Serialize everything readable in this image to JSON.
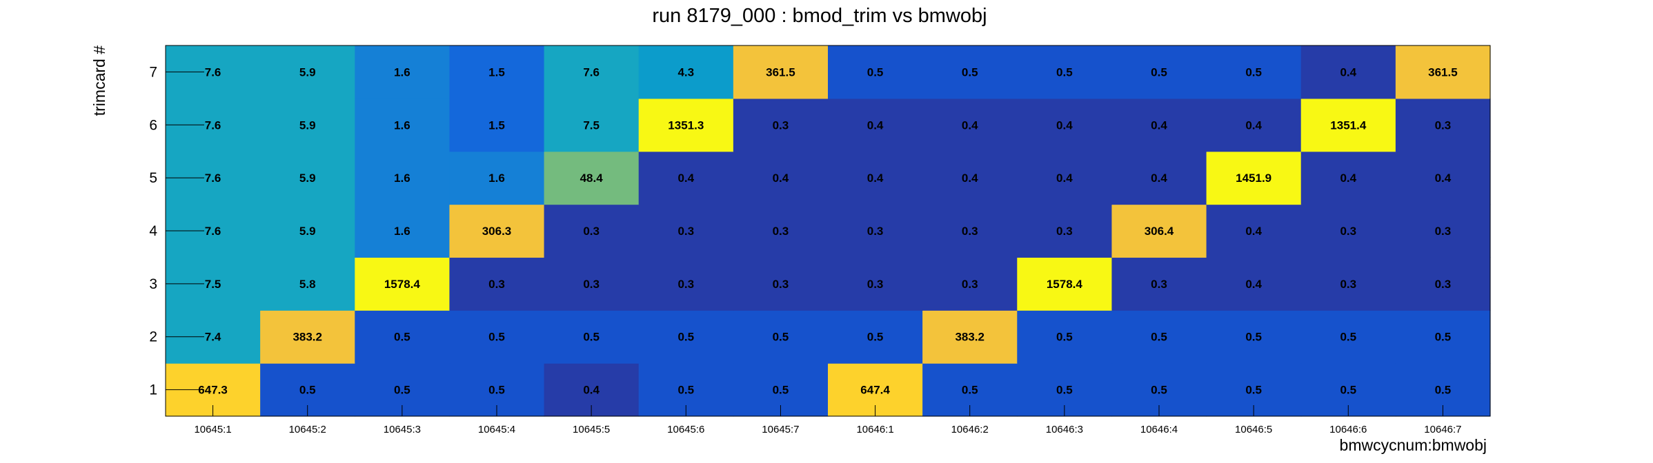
{
  "chart_data": {
    "type": "heatmap",
    "title": "run 8179_000 : bmod_trim vs bmwobj",
    "xlabel": "bmwcycnum:bmwobj",
    "ylabel": "trimcard #",
    "x_categories": [
      "10645:1",
      "10645:2",
      "10645:3",
      "10645:4",
      "10645:5",
      "10645:6",
      "10645:7",
      "10646:1",
      "10646:2",
      "10646:3",
      "10646:4",
      "10646:5",
      "10646:6",
      "10646:7"
    ],
    "y_categories": [
      "1",
      "2",
      "3",
      "4",
      "5",
      "6",
      "7"
    ],
    "values": [
      [
        647.3,
        0.5,
        0.5,
        0.5,
        0.4,
        0.5,
        0.5,
        647.4,
        0.5,
        0.5,
        0.5,
        0.5,
        0.5,
        0.5
      ],
      [
        7.4,
        383.2,
        0.5,
        0.5,
        0.5,
        0.5,
        0.5,
        0.5,
        383.2,
        0.5,
        0.5,
        0.5,
        0.5,
        0.5
      ],
      [
        7.5,
        5.8,
        1578.4,
        0.3,
        0.3,
        0.3,
        0.3,
        0.3,
        0.3,
        1578.4,
        0.3,
        0.4,
        0.3,
        0.3
      ],
      [
        7.6,
        5.9,
        1.6,
        306.3,
        0.3,
        0.3,
        0.3,
        0.3,
        0.3,
        0.3,
        306.4,
        0.4,
        0.3,
        0.3
      ],
      [
        7.6,
        5.9,
        1.6,
        1.6,
        48.4,
        0.4,
        0.4,
        0.4,
        0.4,
        0.4,
        0.4,
        1451.9,
        0.4,
        0.4
      ],
      [
        7.6,
        5.9,
        1.6,
        1.5,
        7.5,
        1351.3,
        0.3,
        0.4,
        0.4,
        0.4,
        0.4,
        0.4,
        1351.4,
        0.3
      ],
      [
        7.6,
        5.9,
        1.6,
        1.5,
        7.6,
        4.3,
        361.5,
        0.5,
        0.5,
        0.5,
        0.5,
        0.5,
        0.4,
        361.5
      ]
    ],
    "colors": {
      "v0_3": "#263ca8",
      "v0_5": "#1652cc",
      "v1_5": "#1468db",
      "v1_6": "#1580d6",
      "v4_7": "#0c9ccb",
      "v5_8": "#16a6c2",
      "v48": "#74bb7e",
      "v300": "#f3c33b",
      "v600": "#fdd22c",
      "v1300": "#f8f814"
    },
    "grid": false,
    "legend": "none"
  }
}
